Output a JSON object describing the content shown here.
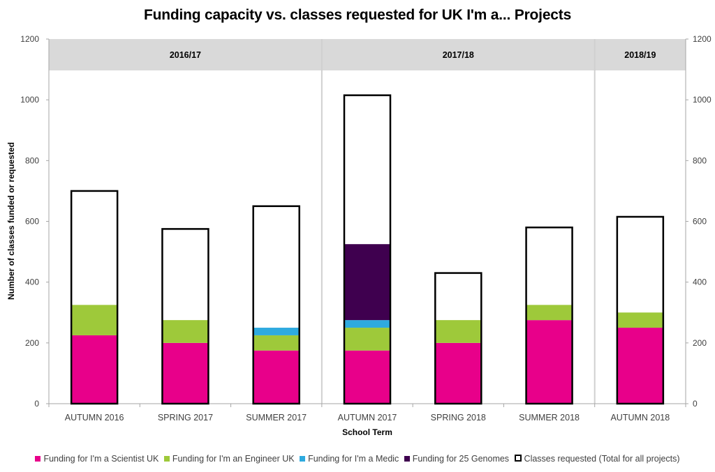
{
  "chart_data": {
    "type": "bar",
    "stacked": true,
    "title": "Funding capacity vs. classes requested for UK I'm a... Projects",
    "xlabel": "School Term",
    "ylabel": "Number of classes funded or requested",
    "ylim": [
      0,
      1200
    ],
    "yticks": [
      0,
      200,
      400,
      600,
      800,
      1000,
      1200
    ],
    "secondary_y_axis": true,
    "grid": false,
    "legend_position": "bottom",
    "categories": [
      "AUTUMN 2016",
      "SPRING 2017",
      "SUMMER 2017",
      "AUTUMN 2017",
      "SPRING 2018",
      "SUMMER 2018",
      "AUTUMN 2018"
    ],
    "year_groups": [
      {
        "label": "2016/17",
        "start": 0,
        "end": 2
      },
      {
        "label": "2017/18",
        "start": 3,
        "end": 5
      },
      {
        "label": "2018/19",
        "start": 6,
        "end": 6
      }
    ],
    "series": [
      {
        "name": "Funding for I'm a Scientist UK",
        "color": "#e8008a",
        "values": [
          225,
          200,
          175,
          175,
          200,
          275,
          250
        ]
      },
      {
        "name": "Funding for I'm an Engineer UK",
        "color": "#9ec93a",
        "values": [
          100,
          75,
          50,
          75,
          75,
          50,
          50
        ]
      },
      {
        "name": "Funding for I'm a Medic",
        "color": "#2eaadf",
        "values": [
          0,
          0,
          25,
          25,
          0,
          0,
          0
        ]
      },
      {
        "name": "Funding for 25 Genomes",
        "color": "#3f004f",
        "values": [
          0,
          0,
          0,
          250,
          0,
          0,
          0
        ]
      },
      {
        "name": "Classes requested (Total for all projects)",
        "color": "#000000",
        "style": "outline",
        "values": [
          700,
          575,
          650,
          1015,
          430,
          580,
          615
        ]
      }
    ]
  },
  "legend": {
    "items": [
      {
        "label": "Funding for I'm a Scientist UK",
        "color": "#e8008a"
      },
      {
        "label": "Funding for I'm an Engineer UK",
        "color": "#9ec93a"
      },
      {
        "label": "Funding for I'm a Medic",
        "color": "#2eaadf"
      },
      {
        "label": "Funding for 25 Genomes",
        "color": "#3f004f"
      },
      {
        "label": "Classes requested (Total for all projects)",
        "color": "#000000"
      }
    ]
  }
}
